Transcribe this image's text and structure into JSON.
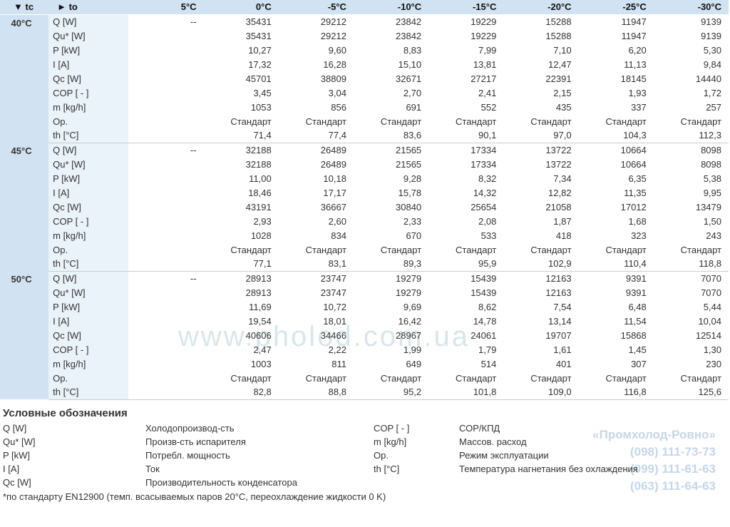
{
  "header": {
    "tc_label": "▼ tc",
    "to_label": "► to",
    "temps": [
      "5°C",
      "0°C",
      "-5°C",
      "-10°C",
      "-15°C",
      "-20°C",
      "-25°C",
      "-30°C"
    ]
  },
  "params": [
    "Q [W]",
    "Qu* [W]",
    "P [kW]",
    "I [A]",
    "Qc [W]",
    "COP [ - ]",
    "m [kg/h]",
    "Op.",
    "th [°C]"
  ],
  "blocks": [
    {
      "tc": "40°C",
      "rows": [
        [
          "--",
          "35431",
          "29212",
          "23842",
          "19229",
          "15288",
          "11947",
          "9139"
        ],
        [
          "",
          "35431",
          "29212",
          "23842",
          "19229",
          "15288",
          "11947",
          "9139"
        ],
        [
          "",
          "10,27",
          "9,60",
          "8,83",
          "7,99",
          "7,10",
          "6,20",
          "5,30"
        ],
        [
          "",
          "17,32",
          "16,28",
          "15,10",
          "13,81",
          "12,47",
          "11,13",
          "9,84"
        ],
        [
          "",
          "45701",
          "38809",
          "32671",
          "27217",
          "22391",
          "18145",
          "14440"
        ],
        [
          "",
          "3,45",
          "3,04",
          "2,70",
          "2,41",
          "2,15",
          "1,93",
          "1,72"
        ],
        [
          "",
          "1053",
          "856",
          "691",
          "552",
          "435",
          "337",
          "257"
        ],
        [
          "",
          "Стандарт",
          "Стандарт",
          "Стандарт",
          "Стандарт",
          "Стандарт",
          "Стандарт",
          "Стандарт"
        ],
        [
          "",
          "71,4",
          "77,4",
          "83,6",
          "90,1",
          "97,0",
          "104,3",
          "112,3"
        ]
      ]
    },
    {
      "tc": "45°C",
      "rows": [
        [
          "--",
          "32188",
          "26489",
          "21565",
          "17334",
          "13722",
          "10664",
          "8098"
        ],
        [
          "",
          "32188",
          "26489",
          "21565",
          "17334",
          "13722",
          "10664",
          "8098"
        ],
        [
          "",
          "11,00",
          "10,18",
          "9,28",
          "8,32",
          "7,34",
          "6,35",
          "5,38"
        ],
        [
          "",
          "18,46",
          "17,17",
          "15,78",
          "14,32",
          "12,82",
          "11,35",
          "9,95"
        ],
        [
          "",
          "43191",
          "36667",
          "30840",
          "25654",
          "21058",
          "17012",
          "13479"
        ],
        [
          "",
          "2,93",
          "2,60",
          "2,33",
          "2,08",
          "1,87",
          "1,68",
          "1,50"
        ],
        [
          "",
          "1028",
          "834",
          "670",
          "533",
          "418",
          "323",
          "243"
        ],
        [
          "",
          "Стандарт",
          "Стандарт",
          "Стандарт",
          "Стандарт",
          "Стандарт",
          "Стандарт",
          "Стандарт"
        ],
        [
          "",
          "77,1",
          "83,1",
          "89,3",
          "95,9",
          "102,9",
          "110,4",
          "118,8"
        ]
      ]
    },
    {
      "tc": "50°C",
      "rows": [
        [
          "--",
          "28913",
          "23747",
          "19279",
          "15439",
          "12163",
          "9391",
          "7070"
        ],
        [
          "",
          "28913",
          "23747",
          "19279",
          "15439",
          "12163",
          "9391",
          "7070"
        ],
        [
          "",
          "11,69",
          "10,72",
          "9,69",
          "8,62",
          "7,54",
          "6,48",
          "5,44"
        ],
        [
          "",
          "19,54",
          "18,01",
          "16,42",
          "14,78",
          "13,14",
          "11,54",
          "10,04"
        ],
        [
          "",
          "40606",
          "34466",
          "28967",
          "24061",
          "19707",
          "15868",
          "12514"
        ],
        [
          "",
          "2,47",
          "2,22",
          "1,99",
          "1,79",
          "1,61",
          "1,45",
          "1,30"
        ],
        [
          "",
          "1003",
          "811",
          "649",
          "514",
          "401",
          "307",
          "230"
        ],
        [
          "",
          "Стандарт",
          "Стандарт",
          "Стандарт",
          "Стандарт",
          "Стандарт",
          "Стандарт",
          "Стандарт"
        ],
        [
          "",
          "82,8",
          "88,8",
          "95,2",
          "101,8",
          "109,0",
          "116,8",
          "125,6"
        ]
      ]
    }
  ],
  "legend": {
    "title": "Условные обозначения",
    "items": [
      [
        "Q [W]",
        "Холодопроизвод-сть",
        "COP [ - ]",
        "СОР/КПД"
      ],
      [
        "Qu* [W]",
        "Произв-сть испарителя",
        "m [kg/h]",
        "Массов. расход"
      ],
      [
        "P [kW]",
        "Потребл. мощность",
        "Op.",
        "Режим эксплуатации"
      ],
      [
        "I [A]",
        "Ток",
        "th [°C]",
        "Температура нагнетания без охлаждения"
      ],
      [
        "Qc [W]",
        "Производительность конденсатора",
        "",
        ""
      ]
    ]
  },
  "footnote": "*по стандарту EN12900 (темп. всасываемых паров 20°C, переохлаждение жидкости 0 K)",
  "watermark": {
    "main": "www.pholod.com.ua",
    "company": "«Промхолод-Ровно»",
    "phones": [
      "(098) 111-73-73",
      "(099) 111-61-63",
      "(063) 111-64-63"
    ]
  },
  "colors": {
    "header_bg": "#d1e2f2",
    "param_bg": "#eaf2fa",
    "text": "#333333",
    "wm": "#d8e6ea",
    "wm2": "#c5d6e8"
  }
}
